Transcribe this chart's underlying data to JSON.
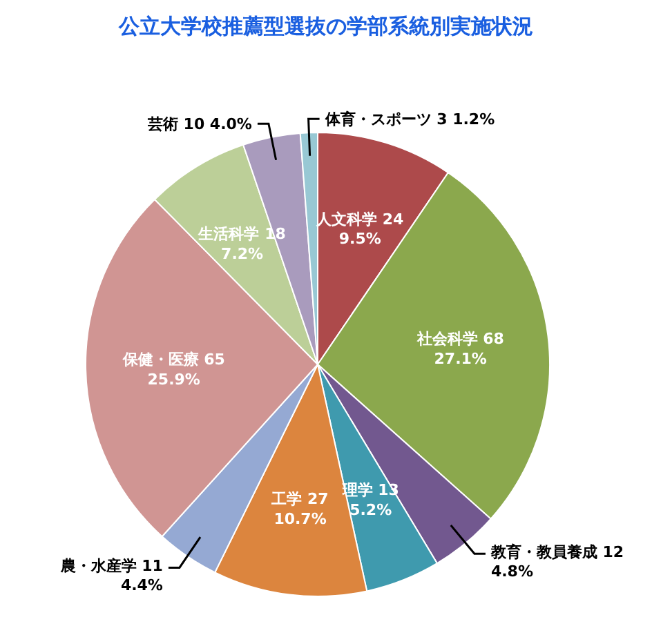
{
  "chart_data": {
    "type": "pie",
    "title": "公立大学校推薦型選抜の学部系統別実施状況",
    "categories": [
      "人文科学 24",
      "社会科学 68",
      "教育・教員養成 12",
      "理学 13",
      "工学 27",
      "農・水産学 11",
      "保健・医療 65",
      "生活科学 18",
      "芸術 10",
      "体育・スポーツ 3"
    ],
    "values": [
      9.5,
      27.1,
      4.8,
      5.2,
      10.7,
      4.4,
      25.9,
      7.2,
      4.0,
      1.2
    ],
    "colors": [
      "#ad4a4b",
      "#8ba84d",
      "#72588f",
      "#3f9aae",
      "#dc853e",
      "#95a9d3",
      "#d09593",
      "#bccf98",
      "#a99bbd",
      "#98c8d4"
    ],
    "value_labels": [
      "9.5%",
      "27.1%",
      "4.8%",
      "5.2%",
      "10.7%",
      "4.4%",
      "25.9%",
      "7.2%",
      "4.0%",
      "1.2%"
    ]
  }
}
